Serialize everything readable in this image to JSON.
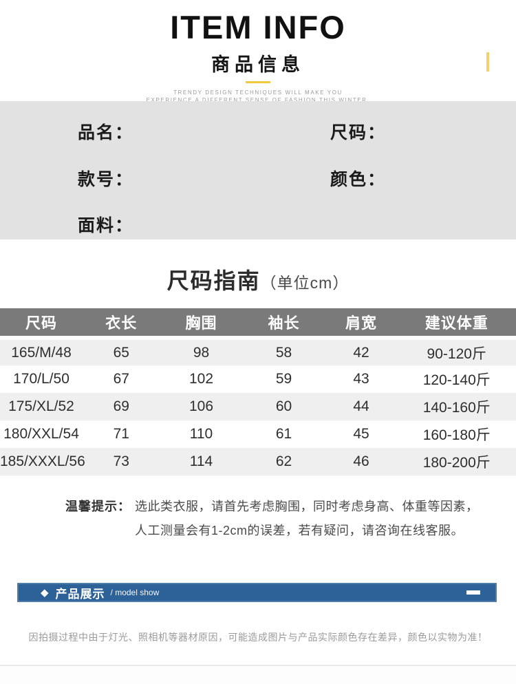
{
  "header": {
    "title": "ITEM INFO",
    "subtitle": "商品信息",
    "tagline_line1": "TRENDY DESIGN TECHNIQUES WILL MAKE YOU",
    "tagline_line2": "EXPERIENCE A DIFFERENT SENSE OF FASHION THIS WINTER."
  },
  "info_panel": {
    "fields": [
      {
        "label": "品名："
      },
      {
        "label": "尺码："
      },
      {
        "label": "款号："
      },
      {
        "label": "颜色："
      },
      {
        "label": "面料："
      }
    ]
  },
  "size_guide": {
    "title": "尺码指南",
    "unit": "（单位cm）"
  },
  "table": {
    "columns": [
      "尺码",
      "衣长",
      "胸围",
      "袖长",
      "肩宽",
      "建议体重"
    ],
    "rows": [
      [
        "165/M/48",
        "65",
        "98",
        "58",
        "42",
        "90-120斤"
      ],
      [
        "170/L/50",
        "67",
        "102",
        "59",
        "43",
        "120-140斤"
      ],
      [
        "175/XL/52",
        "69",
        "106",
        "60",
        "44",
        "140-160斤"
      ],
      [
        "180/XXL/54",
        "71",
        "110",
        "61",
        "45",
        "160-180斤"
      ],
      [
        "185/XXXL/56",
        "73",
        "114",
        "62",
        "46",
        "180-200斤"
      ]
    ]
  },
  "tips": {
    "label": "温馨提示：",
    "line1": "选此类衣服，请首先考虑胸围，同时考虑身高、体重等因素，",
    "line2": "人工测量会有1-2cm的误差，若有疑问，请咨询在线客服。"
  },
  "section_bar": {
    "diamond_icon": "◆",
    "title": "产品展示",
    "subtitle": "/ model show"
  },
  "disclaimer": "因拍摄过程中由于灯光、照相机等器材原因，可能造成图片与产品实际颜色存在差异，颜色以实物为准！",
  "colors": {
    "accent_yellow": "#f0c83c",
    "table_header_gray": "#7a7a7a",
    "row_alt_gray": "#efefef",
    "panel_gray": "#e3e2e2",
    "section_blue": "#2c6298"
  }
}
